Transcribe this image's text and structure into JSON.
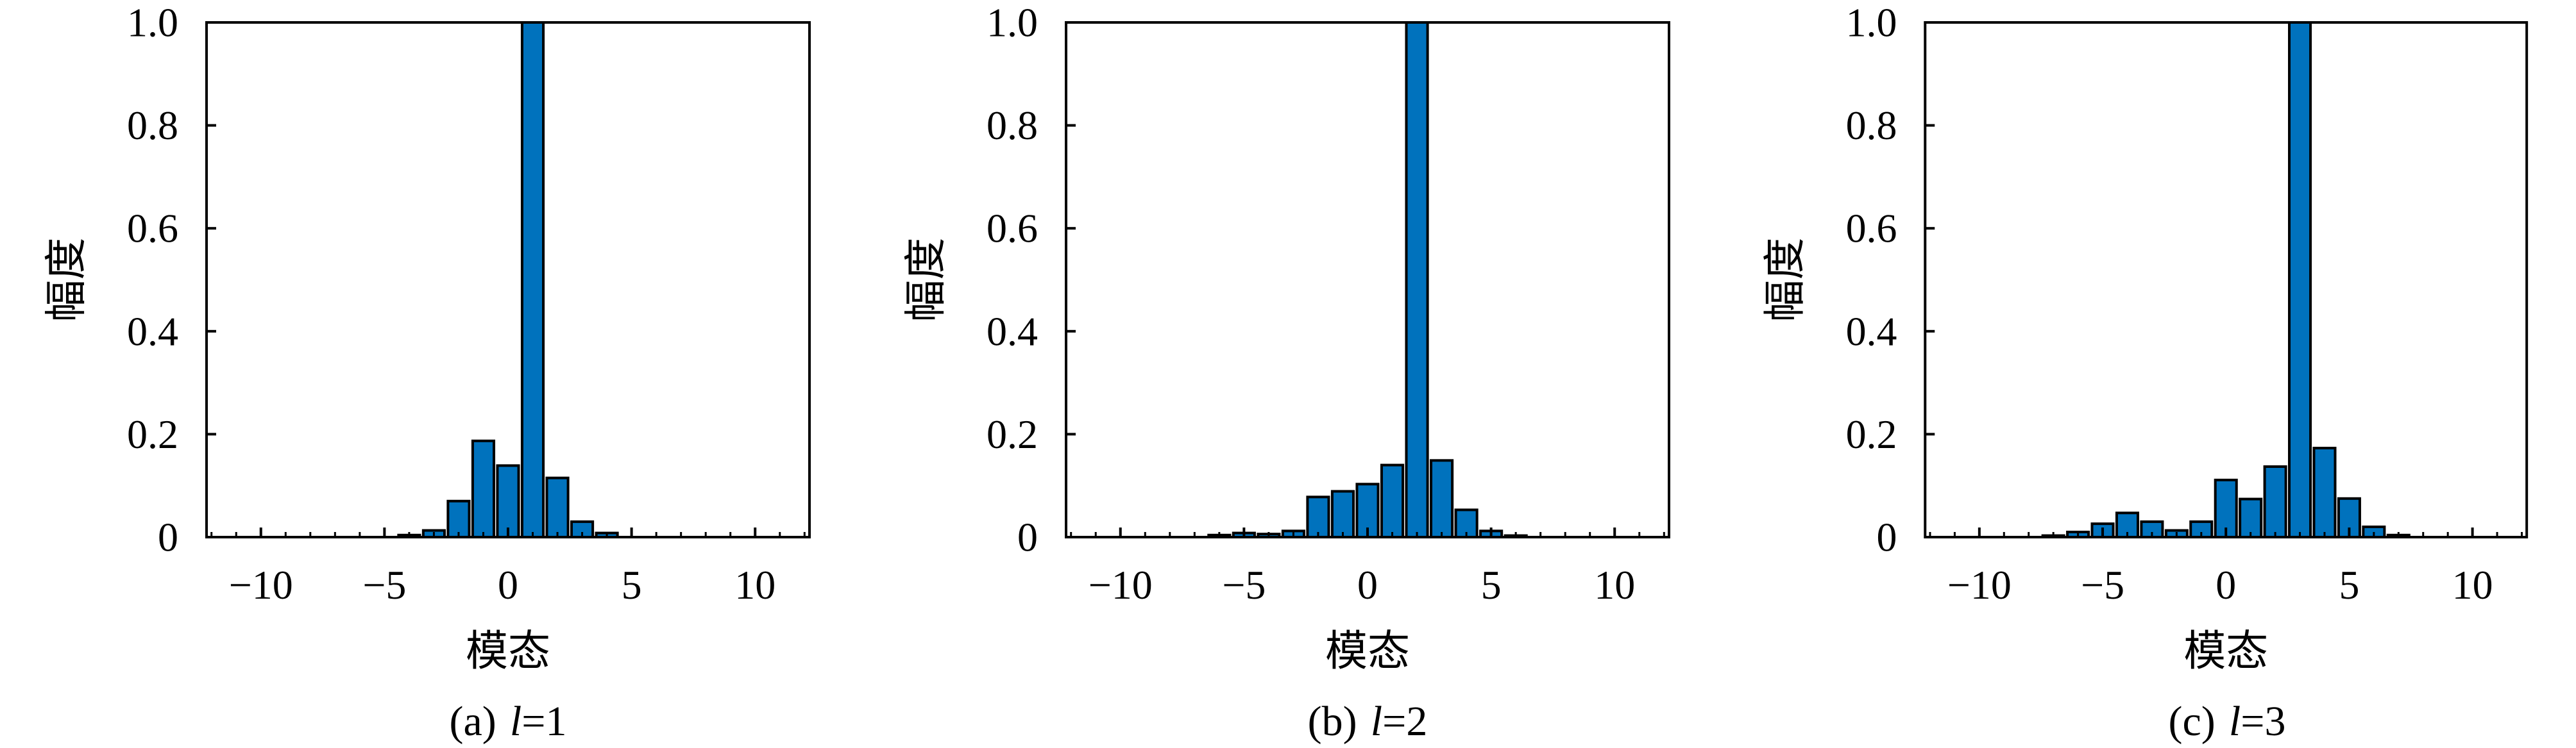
{
  "page": {
    "background": "#ffffff"
  },
  "style": {
    "bar_fill": "#0072BD",
    "bar_edge": "#000000",
    "axis_color": "#000000",
    "text_color": "#000000"
  },
  "chart_data": [
    {
      "type": "bar",
      "panel_label": "(a)",
      "mode_variable": "l",
      "mode_equation": "=1",
      "xlabel": "模态",
      "ylabel": "幅度",
      "xlim": [
        -12.2,
        12.2
      ],
      "ylim": [
        0,
        1.0
      ],
      "x_tick_values": [
        -10,
        -5,
        0,
        5,
        10
      ],
      "x_tick_labels": [
        "−10",
        "−5",
        "0",
        "5",
        "10"
      ],
      "y_tick_values": [
        0,
        0.2,
        0.4,
        0.6,
        0.8,
        1.0
      ],
      "y_tick_labels": [
        "0",
        "0.2",
        "0.4",
        "0.6",
        "0.8",
        "1.0"
      ],
      "x_minor_step": 1,
      "bar_width": 0.86,
      "grid": false,
      "x": [
        -4,
        -3,
        -2,
        -1,
        0,
        1,
        2,
        3,
        4
      ],
      "values": [
        0.004,
        0.013,
        0.07,
        0.187,
        0.139,
        1.0,
        0.115,
        0.03,
        0.008
      ]
    },
    {
      "type": "bar",
      "panel_label": "(b)",
      "mode_variable": "l",
      "mode_equation": "=2",
      "xlabel": "模态",
      "ylabel": "幅度",
      "xlim": [
        -12.2,
        12.2
      ],
      "ylim": [
        0,
        1.0
      ],
      "x_tick_values": [
        -10,
        -5,
        0,
        5,
        10
      ],
      "x_tick_labels": [
        "−10",
        "−5",
        "0",
        "5",
        "10"
      ],
      "y_tick_values": [
        0,
        0.2,
        0.4,
        0.6,
        0.8,
        1.0
      ],
      "y_tick_labels": [
        "0",
        "0.2",
        "0.4",
        "0.6",
        "0.8",
        "1.0"
      ],
      "x_minor_step": 1,
      "bar_width": 0.86,
      "grid": false,
      "x": [
        -6,
        -5,
        -4,
        -3,
        -2,
        -1,
        0,
        1,
        2,
        3,
        4,
        5,
        6
      ],
      "values": [
        0.004,
        0.008,
        0.006,
        0.012,
        0.078,
        0.089,
        0.103,
        0.14,
        1.0,
        0.149,
        0.053,
        0.012,
        0.003
      ]
    },
    {
      "type": "bar",
      "panel_label": "(c)",
      "mode_variable": "l",
      "mode_equation": "=3",
      "xlabel": "模态",
      "ylabel": "幅度",
      "xlim": [
        -12.2,
        12.2
      ],
      "ylim": [
        0,
        1.0
      ],
      "x_tick_values": [
        -10,
        -5,
        0,
        5,
        10
      ],
      "x_tick_labels": [
        "−10",
        "−5",
        "0",
        "5",
        "10"
      ],
      "y_tick_values": [
        0,
        0.2,
        0.4,
        0.6,
        0.8,
        1.0
      ],
      "y_tick_labels": [
        "0",
        "0.2",
        "0.4",
        "0.6",
        "0.8",
        "1.0"
      ],
      "x_minor_step": 1,
      "bar_width": 0.86,
      "grid": false,
      "x": [
        -7,
        -6,
        -5,
        -4,
        -3,
        -2,
        -1,
        0,
        1,
        2,
        3,
        4,
        5,
        6,
        7
      ],
      "values": [
        0.003,
        0.01,
        0.026,
        0.047,
        0.03,
        0.013,
        0.03,
        0.111,
        0.074,
        0.137,
        1.0,
        0.173,
        0.075,
        0.02,
        0.004
      ]
    }
  ]
}
